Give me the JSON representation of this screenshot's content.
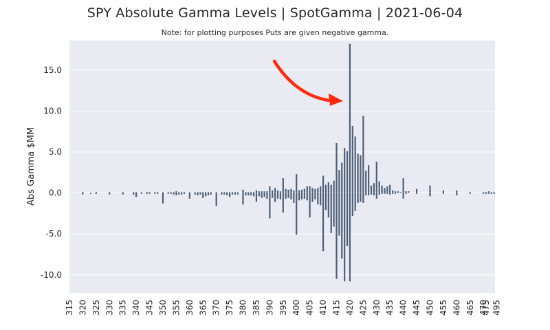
{
  "chart_data": {
    "type": "bar",
    "title": "SPY Absolute Gamma Levels | SpotGamma | 2021-06-04",
    "subtitle": "Note: for plotting purposes Puts are given negative gamma.",
    "xlabel": "",
    "ylabel": "Abs Gamma $MM",
    "ylim": [
      -12.2,
      18.6
    ],
    "yticks": [
      "15.0",
      "10.0",
      "5.0",
      "0.0",
      "-5.0",
      "-10.0"
    ],
    "ytick_values": [
      15,
      10,
      5,
      0,
      -5,
      -10
    ],
    "xtick_labels": [
      "315",
      "320",
      "325",
      "330",
      "335",
      "340",
      "345",
      "350",
      "355",
      "360",
      "365",
      "370",
      "375",
      "380",
      "385",
      "390",
      "395",
      "400",
      "405",
      "410",
      "415",
      "420",
      "425",
      "430",
      "435",
      "440",
      "445",
      "450",
      "455",
      "460",
      "465",
      "470",
      "475",
      "495"
    ],
    "grid": true,
    "bar_color": "#4c5f78",
    "background_color": "#eaeaf2",
    "annotation_color": "#ff2a0a",
    "annotation": "red arrow pointing at 420 strike",
    "series": [
      {
        "values": {
          "320": 0.1,
          "325": 0.1,
          "330": 0.1,
          "335": 0.1,
          "339": 0.1,
          "340": 0.1,
          "342": 0.1,
          "344": 0.1,
          "345": 0.1,
          "347": 0.1,
          "348": 0.1,
          "350": 0.1,
          "352": 0.1,
          "353": 0.1,
          "354": 0.1,
          "355": 0.2,
          "356": 0.1,
          "357": 0.1,
          "358": 0.1,
          "360": 0.1,
          "362": 0.1,
          "363": 0.1,
          "364": 0.1,
          "365": 0.1,
          "366": 0.1,
          "367": 0.1,
          "368": 0.1,
          "370": 0.1,
          "372": 0.1,
          "373": 0.1,
          "374": 0.1,
          "375": 0.1,
          "376": 0.1,
          "377": 0.1,
          "378": 0.1,
          "380": 0.4,
          "381": 0.1,
          "382": 0.1,
          "383": 0.1,
          "384": 0.1,
          "385": 0.3,
          "386": 0.2,
          "387": 0.2,
          "388": 0.2,
          "389": 0.2,
          "390": 0.8,
          "391": 0.3,
          "392": 0.6,
          "393": 0.3,
          "394": 0.2,
          "395": 1.8,
          "396": 0.5,
          "397": 0.4,
          "398": 0.5,
          "399": 0.3,
          "400": 2.3,
          "401": 0.3,
          "402": 0.4,
          "403": 0.5,
          "404": 0.8,
          "405": 0.8,
          "406": 0.6,
          "407": 0.5,
          "408": 0.6,
          "409": 0.8,
          "410": 2.1,
          "411": 1.0,
          "412": 1.3,
          "413": 1.0,
          "414": 1.5,
          "415": 6.1,
          "416": 2.8,
          "417": 3.7,
          "418": 5.5,
          "419": 5.1,
          "420": 18.2,
          "421": 8.2,
          "422": 6.9,
          "423": 4.8,
          "424": 4.6,
          "425": 9.4,
          "426": 2.7,
          "427": 3.4,
          "428": 0.9,
          "429": 1.2,
          "430": 3.8,
          "431": 1.4,
          "432": 0.9,
          "433": 0.6,
          "434": 0.8,
          "435": 1.0,
          "436": 0.3,
          "437": 0.2,
          "438": 0.2,
          "439": 0.1,
          "440": 1.8,
          "441": 0.2,
          "442": 0.2,
          "445": 0.5,
          "450": 0.9,
          "455": 0.3,
          "460": 0.3,
          "465": 0.1,
          "470": 0.1,
          "475": 0.1,
          "480": 0.2,
          "485": 0.1,
          "490": 0.1
        }
      },
      {
        "values": {
          "320": -0.2,
          "323": -0.1,
          "325": -0.1,
          "330": -0.2,
          "335": -0.2,
          "339": -0.2,
          "340": -0.5,
          "342": -0.1,
          "344": -0.1,
          "345": -0.1,
          "347": -0.1,
          "348": -0.1,
          "350": -1.3,
          "352": -0.1,
          "353": -0.1,
          "354": -0.2,
          "355": -0.3,
          "356": -0.2,
          "357": -0.2,
          "358": -0.1,
          "360": -0.7,
          "362": -0.2,
          "363": -0.3,
          "364": -0.2,
          "365": -0.6,
          "366": -0.4,
          "367": -0.3,
          "368": -0.2,
          "370": -1.6,
          "372": -0.2,
          "373": -0.2,
          "374": -0.3,
          "375": -0.5,
          "376": -0.2,
          "377": -0.2,
          "378": -0.2,
          "380": -1.4,
          "381": -0.3,
          "382": -0.3,
          "383": -0.3,
          "384": -0.4,
          "385": -1.1,
          "386": -0.4,
          "387": -0.6,
          "388": -0.5,
          "389": -0.7,
          "390": -3.1,
          "391": -0.6,
          "392": -1.1,
          "393": -0.7,
          "394": -0.8,
          "395": -2.4,
          "396": -0.7,
          "397": -0.6,
          "398": -0.8,
          "399": -1.2,
          "400": -5.1,
          "401": -0.9,
          "402": -0.8,
          "403": -0.7,
          "404": -0.9,
          "405": -3.0,
          "406": -1.1,
          "407": -0.8,
          "408": -1.4,
          "409": -1.5,
          "410": -7.1,
          "411": -2.1,
          "412": -3.0,
          "413": -4.9,
          "414": -4.1,
          "415": -10.5,
          "416": -5.2,
          "417": -8.0,
          "418": -10.8,
          "419": -6.5,
          "420": -10.8,
          "421": -2.8,
          "422": -2.2,
          "423": -1.2,
          "424": -1.1,
          "425": -1.2,
          "426": -0.3,
          "427": -0.3,
          "428": -0.2,
          "429": -0.3,
          "430": -0.7,
          "431": -0.2,
          "432": -0.1,
          "433": -0.1,
          "434": -0.1,
          "435": -0.2,
          "436": -0.1,
          "437": -0.1,
          "440": -0.7,
          "441": -0.1,
          "445": -0.1,
          "450": -0.4,
          "455": -0.1,
          "460": -0.3,
          "465": -0.1,
          "470": -0.1,
          "475": -0.1,
          "480": -0.1,
          "485": -0.1,
          "490": -0.1
        }
      }
    ]
  }
}
